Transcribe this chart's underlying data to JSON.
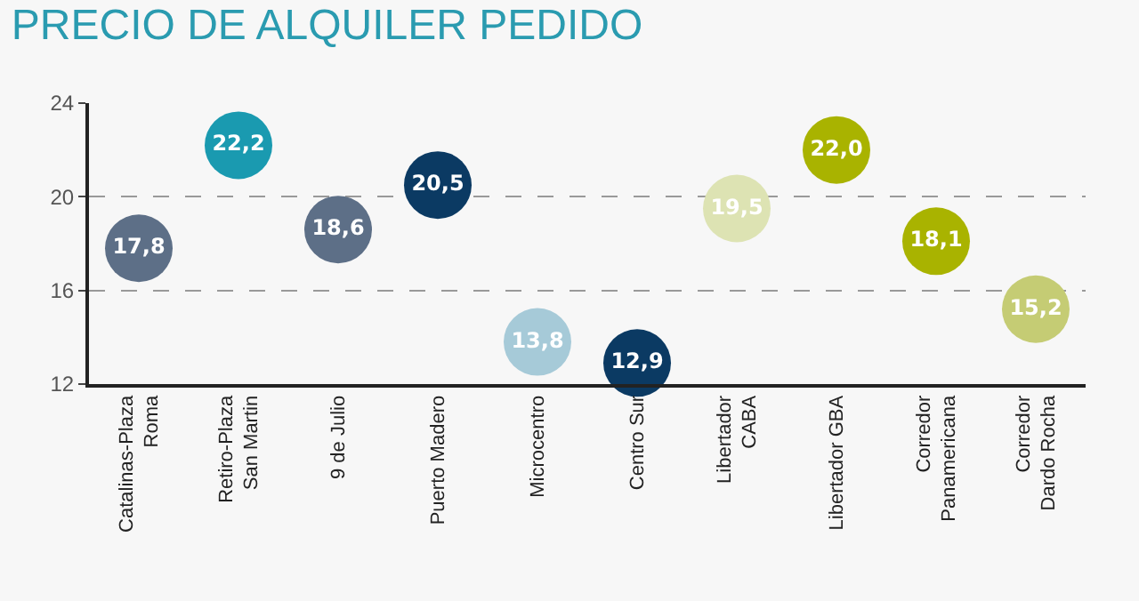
{
  "chart_data": {
    "type": "scatter",
    "title": "PRECIO DE ALQUILER PEDIDO",
    "categories": [
      "Catalinas-Plaza Roma",
      "Retiro-Plaza San Martin",
      "9 de Julio",
      "Puerto Madero",
      "Microcentro",
      "Centro Sur",
      "Libertador CABA",
      "Libertador GBA",
      "Corredor Panamericana",
      "Corredor Dardo Rocha"
    ],
    "values": [
      17.8,
      22.2,
      18.6,
      20.5,
      13.8,
      12.9,
      19.5,
      22.0,
      18.1,
      15.2
    ],
    "value_labels": [
      "17,8",
      "22,2",
      "18,6",
      "20,5",
      "13,8",
      "12,9",
      "19,5",
      "22,0",
      "18,1",
      "15,2"
    ],
    "colors": [
      "#5d6f87",
      "#1a9ab0",
      "#5d6f87",
      "#0b3a63",
      "#a6cad8",
      "#0b3a63",
      "#dde3b3",
      "#a9b300",
      "#a9b300",
      "#c5cc74"
    ],
    "ylim": [
      12,
      24
    ],
    "yticks": [
      12,
      16,
      20,
      24
    ],
    "grid": "y",
    "marker": "circle",
    "legend": false
  }
}
